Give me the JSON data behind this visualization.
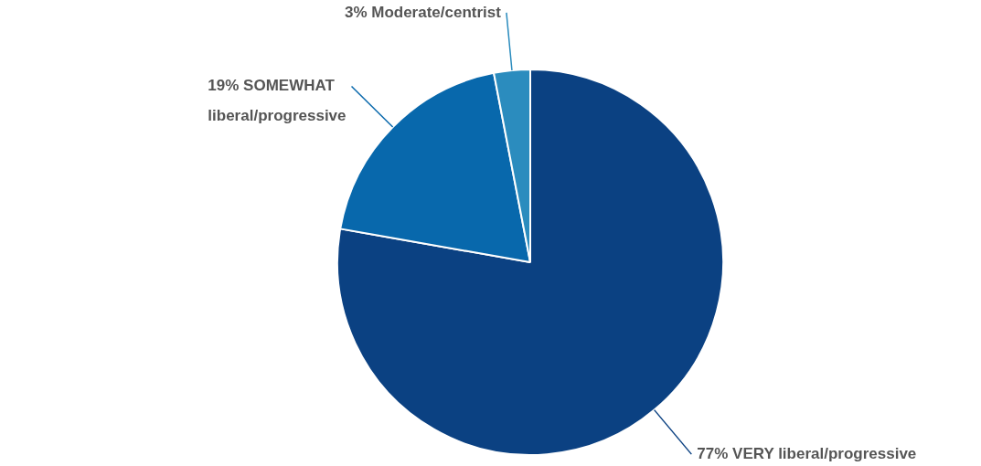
{
  "chart_data": {
    "type": "pie",
    "categories": [
      "VERY liberal/progressive",
      "SOMEWHAT liberal/progressive",
      "Moderate/centrist"
    ],
    "values": [
      77,
      19,
      3
    ],
    "colors": [
      "#0b4182",
      "#0868ac",
      "#2b8cbe"
    ],
    "value_labels": [
      "77%",
      "19%",
      "3%"
    ],
    "legend": false
  }
}
